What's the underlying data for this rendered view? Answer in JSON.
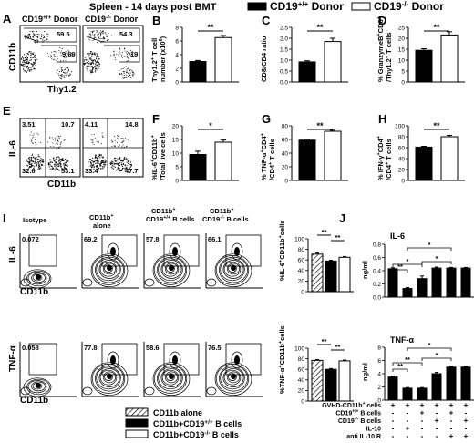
{
  "title": "Spleen - 14 days post BMT",
  "legend_top": [
    {
      "label": "CD19",
      "sup": "+/+",
      "suffix": " Donor",
      "fill": "#000000"
    },
    {
      "label": "CD19",
      "sup": "-/-",
      "suffix": " Donor",
      "fill": "#ffffff"
    }
  ],
  "panels": {
    "A": {
      "letter": "A",
      "plot1_title": "CD19",
      "plot1_sup": "+/+",
      "plot1_suffix": " Donor",
      "plot2_title": "CD19",
      "plot2_sup": "-/-",
      "plot2_suffix": " Donor",
      "plot1_values": [
        "59.5",
        "9.69"
      ],
      "plot2_values": [
        "54.3",
        "19"
      ],
      "ylabel": "CD11b",
      "xlabel": "Thy1.2"
    },
    "E": {
      "letter": "E",
      "plot1_values": [
        "3.51",
        "10.7",
        "32.6",
        "53.1"
      ],
      "plot2_values": [
        "4.11",
        "14.8",
        "33.4",
        "47.7"
      ],
      "ylabel": "IL-6",
      "xlabel": "CD11b"
    },
    "I": {
      "letter": "I",
      "col_headers": [
        "Isotype",
        "CD11b",
        "alone",
        "CD11b",
        "CD19",
        "+/+",
        "B cells",
        "CD11b",
        "CD19",
        "-/-",
        "B cells"
      ],
      "row1_values": [
        "0.072",
        "69.2",
        "57.8",
        "66.1"
      ],
      "row2_values": [
        "0.058",
        "77.8",
        "58.6",
        "76.5"
      ],
      "row1_ylabel": "IL-6",
      "row2_ylabel": "TNF-α",
      "xlabel": "CD11b",
      "bar_ylabel_1": "%IL-6",
      "bar_ylabel_1_sup": "+",
      "bar_ylabel_1_rest": "CD11b",
      "bar_ylabel_1_end": "cells",
      "bar_ylabel_2": "%TNF-α",
      "bar_ylabel_2_rest": "CD11b",
      "bar_ylabel_2_end": "cells",
      "sig": [
        "**",
        "**",
        "**",
        "**"
      ]
    },
    "J": {
      "letter": "J",
      "chart1_title": "IL-6",
      "chart2_title": "TNF-α",
      "ylabel": "ng/ml",
      "table_rows": [
        {
          "label": "GVHD-CD11b",
          "sup": "+",
          "rest": " cells",
          "marks": [
            "+",
            "+",
            "+",
            "+",
            "+",
            "+"
          ]
        },
        {
          "label": "CD19",
          "sup": "+/+",
          "rest": " B cells",
          "marks": [
            "-",
            "-",
            "+",
            "-",
            "+",
            "-"
          ]
        },
        {
          "label": "CD19",
          "sup": "-/-",
          "rest": " B cells",
          "marks": [
            "-",
            "-",
            "-",
            "+",
            "-",
            "+"
          ]
        },
        {
          "label": "IL-10",
          "sup": "",
          "rest": "",
          "marks": [
            "-",
            "+",
            "-",
            "-",
            "-",
            "-"
          ]
        },
        {
          "label": "anti IL-10 R",
          "sup": "",
          "rest": "",
          "marks": [
            "-",
            "-",
            "-",
            "-",
            "+",
            "+"
          ]
        }
      ]
    },
    "legend_bottom": [
      {
        "label": "CD11b alone",
        "pattern": "hatch"
      },
      {
        "label": "CD11b+CD19",
        "sup": "+/+",
        "rest": " B cells",
        "pattern": "black"
      },
      {
        "label": "CD11b+CD19",
        "sup": "-/-",
        "rest": " B cells",
        "pattern": "white"
      }
    ]
  },
  "chart_data": [
    {
      "id": "B",
      "type": "bar",
      "letter": "B",
      "ylabel": "Thy1.2",
      "ylabel_sup": "+",
      "ylabel_rest": " T cell",
      "ylabel_2": "number (x10",
      "ylabel_2_sup": "6",
      "ylabel_2_end": ")",
      "ylim": [
        0,
        8
      ],
      "ticks": [
        "0",
        "2",
        "4",
        "6",
        "8"
      ],
      "values": [
        3.0,
        6.5
      ],
      "errors": [
        0.15,
        0.3
      ],
      "sig": "**"
    },
    {
      "id": "C",
      "type": "bar",
      "letter": "C",
      "ylabel": "CD8/CD4 ratio",
      "ylim": [
        0,
        2.5
      ],
      "ticks": [
        "0.0",
        "0.5",
        "1.0",
        "1.5",
        "2.0",
        "2.5"
      ],
      "values": [
        0.92,
        1.85
      ],
      "errors": [
        0.05,
        0.15
      ],
      "sig": "**"
    },
    {
      "id": "D",
      "type": "bar",
      "letter": "D",
      "ylabel": "% GranzymeB",
      "ylabel_sup": "+",
      "ylabel_rest": "CD8",
      "ylabel_sup2": "+",
      "ylabel_2": "/Thy1.2",
      "ylabel_2_sup": "+",
      "ylabel_2_end": " T cells",
      "ylim": [
        0,
        25
      ],
      "ticks": [
        "0",
        "5",
        "10",
        "15",
        "20",
        "25"
      ],
      "values": [
        14.5,
        21.5
      ],
      "errors": [
        0.7,
        1.5
      ],
      "sig": "**"
    },
    {
      "id": "F",
      "type": "bar",
      "letter": "F",
      "ylabel": "%IL-6",
      "ylabel_sup": "+",
      "ylabel_rest": "CD11b",
      "ylabel_sup2": "+",
      "ylabel_2": "/Total live cells",
      "ylim": [
        0,
        20
      ],
      "ticks": [
        "0",
        "5",
        "10",
        "15",
        "20"
      ],
      "values": [
        9.5,
        14.0
      ],
      "errors": [
        1.2,
        0.8
      ],
      "sig": "*"
    },
    {
      "id": "G",
      "type": "bar",
      "letter": "G",
      "ylabel": "% TNF-α",
      "ylabel_sup": "+",
      "ylabel_rest": "CD4",
      "ylabel_sup2": "+",
      "ylabel_2": "/CD4",
      "ylabel_2_sup": "+",
      "ylabel_2_end": " T cells",
      "ylim": [
        0,
        80
      ],
      "ticks": [
        "0",
        "20",
        "40",
        "60",
        "80"
      ],
      "values": [
        59,
        72
      ],
      "errors": [
        1.5,
        1.5
      ],
      "sig": "**"
    },
    {
      "id": "H",
      "type": "bar",
      "letter": "H",
      "ylabel": "% IFN-γ",
      "ylabel_sup": "+",
      "ylabel_rest": "CD4",
      "ylabel_sup2": "+",
      "ylabel_2": "/CD4",
      "ylabel_2_sup": "+",
      "ylabel_2_end": " T cells",
      "ylim": [
        0,
        100
      ],
      "ticks": [
        "0",
        "20",
        "40",
        "60",
        "80",
        "100"
      ],
      "values": [
        61,
        80
      ],
      "errors": [
        1.5,
        2.5
      ],
      "sig": "**"
    },
    {
      "id": "I1",
      "type": "bar",
      "ylim": [
        0,
        100
      ],
      "ticks": [
        "0",
        "20",
        "40",
        "60",
        "80",
        "100"
      ],
      "values": [
        71,
        58,
        65
      ],
      "errors": [
        2,
        1.5,
        1.5
      ]
    },
    {
      "id": "I2",
      "type": "bar",
      "ylim": [
        0,
        100
      ],
      "ticks": [
        "0",
        "20",
        "40",
        "60",
        "80",
        "100"
      ],
      "values": [
        77,
        60,
        76
      ],
      "errors": [
        1.5,
        1.5,
        1.5
      ]
    },
    {
      "id": "J1",
      "type": "bar",
      "ylim": [
        0,
        0.8
      ],
      "ticks": [
        "0.0",
        "0.2",
        "0.4",
        "0.6",
        "0.8"
      ],
      "values": [
        0.43,
        0.13,
        0.28,
        0.44,
        0.44,
        0.44
      ],
      "errors": [
        0.015,
        0.015,
        0.04,
        0.015,
        0.01,
        0.01
      ],
      "sig": [
        {
          "a": 0,
          "b": 1,
          "label": "**"
        },
        {
          "a": 0,
          "b": 2,
          "label": "*"
        },
        {
          "a": 2,
          "b": 4,
          "label": "*"
        },
        {
          "a": 1,
          "b": 4,
          "label": "*"
        }
      ]
    },
    {
      "id": "J2",
      "type": "bar",
      "ylim": [
        0,
        8
      ],
      "ticks": [
        "0",
        "2",
        "4",
        "6",
        "8"
      ],
      "values": [
        3.5,
        1.8,
        1.8,
        4.0,
        5.0,
        5.0
      ],
      "errors": [
        0.12,
        0.1,
        0.1,
        0.2,
        0.12,
        0.1
      ],
      "sig": [
        {
          "a": 0,
          "b": 1,
          "label": "**"
        },
        {
          "a": 0,
          "b": 2,
          "label": "**"
        },
        {
          "a": 2,
          "b": 4,
          "label": "*"
        },
        {
          "a": 1,
          "b": 4,
          "label": "*"
        }
      ]
    }
  ]
}
